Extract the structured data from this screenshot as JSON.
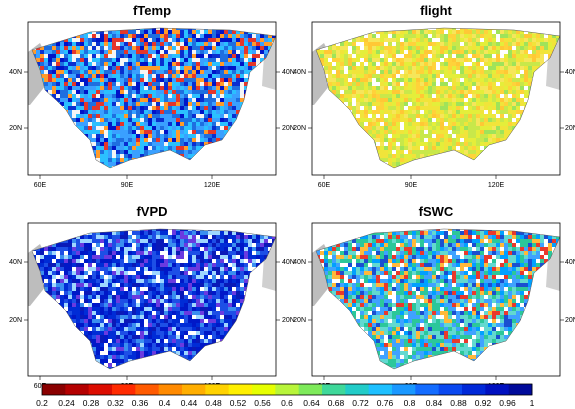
{
  "figure": {
    "panels": [
      {
        "id": "ftemp",
        "title": "fTemp",
        "ramp": [
          "#3aa0ff",
          "#1e6fe0",
          "#2bc0ff",
          "#0a2fd0",
          "#0014c8",
          "#f5f5f5",
          "#e4362a",
          "#ff9b2a"
        ]
      },
      {
        "id": "flight",
        "title": "flight",
        "ramp": [
          "#c8e84a",
          "#e4ee3a",
          "#f1e43a",
          "#ffd23a",
          "#ffc835",
          "#f6e65a",
          "#9fe35a",
          "#ffffff"
        ]
      },
      {
        "id": "fvpd",
        "title": "fVPD",
        "ramp": [
          "#0018c8",
          "#002cd6",
          "#1d4fe6",
          "#0a1ab8",
          "#3a8ef0",
          "#ffffff",
          "#9fd7ff",
          "#6a3ae0"
        ]
      },
      {
        "id": "fswc",
        "title": "fSWC",
        "ramp": [
          "#3fa2ff",
          "#2bc79a",
          "#62d9d0",
          "#1a4fd0",
          "#e9392c",
          "#ffb93a",
          "#ffffff",
          "#00a0ff"
        ]
      }
    ],
    "x_tick_labels": [
      "60E",
      "90E",
      "120E"
    ],
    "y_tick_labels": [
      "20N",
      "40N"
    ],
    "colorbar": {
      "labels": [
        "0.2",
        "0.24",
        "0.28",
        "0.32",
        "0.36",
        "0.4",
        "0.44",
        "0.48",
        "0.52",
        "0.56",
        "0.6",
        "0.64",
        "0.68",
        "0.72",
        "0.76",
        "0.8",
        "0.84",
        "0.88",
        "0.92",
        "0.96",
        "1"
      ],
      "colors": [
        "#8a0000",
        "#b40000",
        "#dc0c00",
        "#ff2a00",
        "#ff5a00",
        "#ff8a00",
        "#ffae00",
        "#ffd200",
        "#fff000",
        "#e6ff00",
        "#b8f53a",
        "#7eea5a",
        "#3fd89a",
        "#22ccc8",
        "#1ec0ff",
        "#1a98ff",
        "#146cff",
        "#0a48f0",
        "#0028d8",
        "#0010c0",
        "#000a9a"
      ]
    }
  }
}
